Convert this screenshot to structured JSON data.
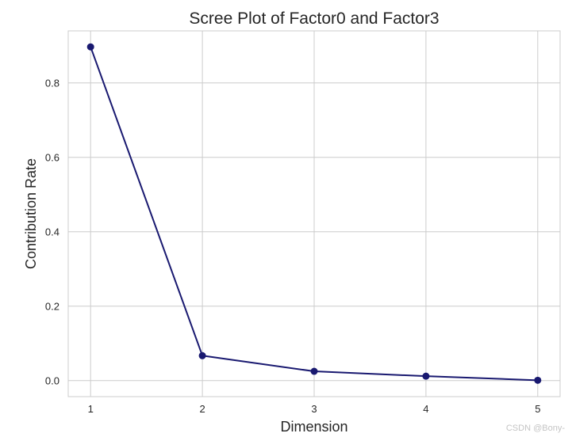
{
  "chart_data": {
    "type": "line",
    "title": "Scree Plot of Factor0 and Factor3",
    "xlabel": "Dimension",
    "ylabel": "Contribution Rate",
    "x": [
      1,
      2,
      3,
      4,
      5
    ],
    "series": [
      {
        "values": [
          0.897,
          0.067,
          0.025,
          0.012,
          0.001
        ]
      }
    ],
    "xticks": [
      "1",
      "2",
      "3",
      "4",
      "5"
    ],
    "yticks": [
      "0.0",
      "0.2",
      "0.4",
      "0.6",
      "0.8"
    ],
    "xlim": [
      0.8,
      5.2
    ],
    "ylim": [
      -0.043,
      0.94
    ],
    "grid": true,
    "line_color": "#191970",
    "marker": "circle"
  },
  "watermark": "CSDN @Bony-"
}
